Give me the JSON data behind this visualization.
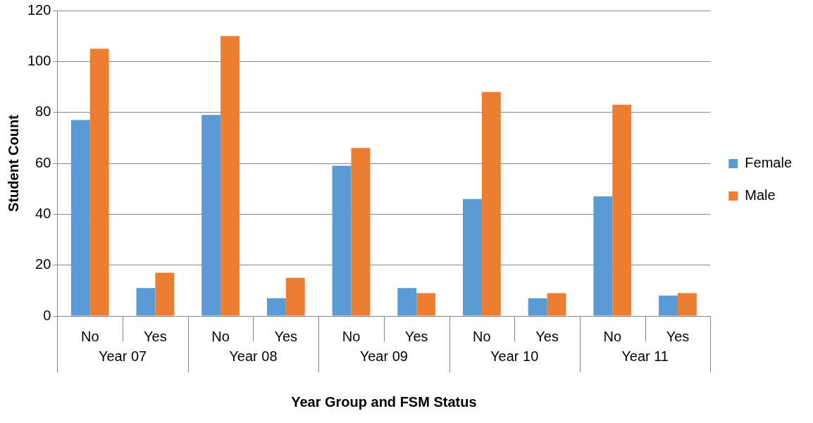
{
  "chart_data": {
    "type": "bar",
    "xlabel": "Year Group and FSM Status",
    "ylabel": "Student Count",
    "categories": [
      "No",
      "Yes",
      "No",
      "Yes",
      "No",
      "Yes",
      "No",
      "Yes",
      "No",
      "Yes"
    ],
    "series": [
      {
        "name": "Female",
        "color": "#5b9bd5",
        "values": [
          77,
          11,
          79,
          7,
          59,
          11,
          46,
          7,
          47,
          8
        ]
      },
      {
        "name": "Male",
        "color": "#ed7d31",
        "values": [
          105,
          17,
          110,
          15,
          66,
          9,
          88,
          9,
          83,
          9
        ]
      }
    ],
    "annotations": [
      "Year 07",
      "Year 08",
      "Year 09",
      "Year 10",
      "Year 11"
    ],
    "ylim": [
      0,
      120
    ],
    "yticks": [
      0,
      20,
      40,
      60,
      80,
      100,
      120
    ],
    "grid": "y",
    "legend": "right"
  }
}
